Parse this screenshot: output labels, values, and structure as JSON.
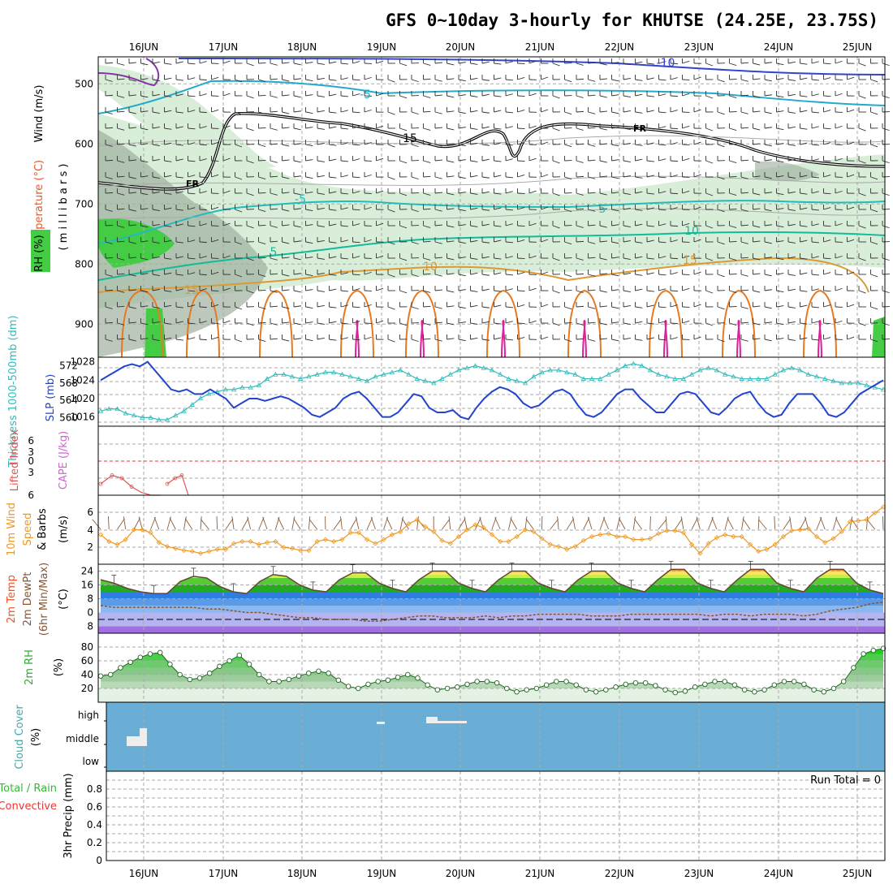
{
  "title": "GFS 0~10day 3-hourly for KHUTSE (24.25E, 23.75S)",
  "day_labels": [
    "16JUN",
    "17JUN",
    "18JUN",
    "19JUN",
    "20JUN",
    "21JUN",
    "22JUN",
    "23JUN",
    "24JUN",
    "25JUN"
  ],
  "colors": {
    "rh_green": "#44cc44",
    "rh_light": "#d9eed9",
    "rh_gray": "#9aaa9a",
    "temp_blue": "#3344cc",
    "temp_cyan": "#22aacc",
    "temp_teal": "#11bb99",
    "temp_orange": "#dd9933",
    "temp_magenta": "#dd2299",
    "slp": "#2244cc",
    "thickness": "#33bbbb",
    "lifted": "#dd5555",
    "wind10": "#ee9922",
    "cloud_bg": "#6aaed6",
    "rain_green": "#33bb33",
    "conv_red": "#ee3333"
  },
  "panels": {
    "upper": {
      "ylabel_wind": "Wind (m/s)",
      "ylabel_temp": "Temperature (°C)",
      "ylabel_rh": "RH (%)",
      "ylabel_mb": "( m i l l i b a r s )",
      "yticks": [
        "500",
        "600",
        "700",
        "800",
        "900"
      ],
      "contour_labels": [
        "-10",
        "-5",
        "-5",
        "5",
        "5",
        "10",
        "10",
        "15",
        "15",
        "15",
        "FR",
        "FR",
        "FR"
      ]
    },
    "slp": {
      "ylabel_thick": "Thickness 1000-500mb (dm)",
      "ylabel_slp": "SLP (mb)",
      "left_ticks": [
        "572",
        "568",
        "564",
        "560"
      ],
      "right_ticks": [
        "1028",
        "1024",
        "1020",
        "1016"
      ]
    },
    "cape": {
      "ylabel_li": "Lifted Index",
      "ylabel_cape": "CAPE (J/kg)",
      "ticks": [
        "6",
        "3",
        "0",
        "3",
        "6"
      ]
    },
    "wind10": {
      "ylabel_a": "10m Wind",
      "ylabel_b": "Speed",
      "ylabel_c": "& Barbs",
      "ylabel_d": "(m/s)",
      "ticks": [
        "6",
        "4",
        "2"
      ]
    },
    "temp2m": {
      "ylabel_a": "2m Temp",
      "ylabel_b": "2m DewPt",
      "ylabel_c": "(6hr Min/Max)",
      "ylabel_d": "(°C)",
      "ticks": [
        "24",
        "16",
        "8",
        "0",
        "8"
      ]
    },
    "rh2m": {
      "ylabel_a": "2m RH",
      "ylabel_b": "(%)",
      "ticks": [
        "80",
        "60",
        "40",
        "20"
      ]
    },
    "cloud": {
      "ylabel_a": "Cloud Cover",
      "ylabel_b": "(%)",
      "ticks": [
        "high",
        "middle",
        "low"
      ]
    },
    "precip": {
      "ylabel_a": "Total / Rain",
      "ylabel_b": "Convective",
      "ylabel_c": "3hr Precip (mm)",
      "ticks": [
        "0.8",
        "0.6",
        "0.4",
        "0.2",
        "0"
      ],
      "run_total": "Run Total = 0"
    }
  },
  "chart_data": [
    {
      "type": "line",
      "title": "SLP (mb)",
      "series": [
        {
          "name": "SLP (mb)",
          "values": [
            1024,
            1025,
            1026,
            1027,
            1027.5,
            1027,
            1028,
            1026,
            1024,
            1022,
            1021.5,
            1022,
            1021,
            1021,
            1022,
            1021,
            1020,
            1018,
            1019,
            1020,
            1020,
            1019.5,
            1020,
            1020.5,
            1020,
            1019,
            1018,
            1016.5,
            1016,
            1017,
            1018,
            1020,
            1021,
            1021.5,
            1020,
            1018,
            1016,
            1016,
            1017,
            1019,
            1021,
            1020.5,
            1018,
            1017,
            1017,
            1017.5,
            1016,
            1015.5,
            1018,
            1020,
            1021.5,
            1022.5,
            1022,
            1021,
            1019,
            1018,
            1018.5,
            1020,
            1021.5,
            1022,
            1021,
            1018.5,
            1016.5,
            1016,
            1017,
            1019,
            1021,
            1022,
            1022,
            1020,
            1018.5,
            1017,
            1017,
            1019,
            1021,
            1021.5,
            1021,
            1019,
            1017,
            1016.5,
            1018,
            1020,
            1021,
            1021.5,
            1019,
            1017,
            1016,
            1016.5,
            1019,
            1021,
            1021,
            1021,
            1019,
            1016.5,
            1016,
            1017,
            1019,
            1021,
            1022,
            1023,
            1024
          ]
        }
      ],
      "ylim": [
        1014,
        1029
      ]
    },
    {
      "type": "line",
      "title": "Thickness 1000-500mb (dm)",
      "series": [
        {
          "name": "Thickness",
          "values": [
            561.5,
            562,
            562,
            561,
            560.5,
            560,
            560,
            559.5,
            559.5,
            560.5,
            561.5,
            563,
            564.5,
            565.5,
            566,
            566.5,
            566.5,
            567,
            567,
            567.5,
            569,
            570,
            570,
            569.5,
            569,
            569.5,
            570,
            570.5,
            570.5,
            570,
            569.5,
            569,
            568.5,
            569.5,
            570,
            570.5,
            571,
            570,
            569,
            568.5,
            568,
            569,
            570,
            571,
            571.5,
            572,
            571.5,
            571,
            570,
            569,
            568.5,
            568,
            569.5,
            570.5,
            571,
            571,
            570.5,
            570,
            569,
            569,
            569,
            570,
            571,
            572,
            572.5,
            572,
            571,
            570,
            569.5,
            569,
            569,
            570,
            571,
            571.5,
            571,
            570,
            569.5,
            569,
            569,
            569,
            569,
            570,
            571,
            571.5,
            571,
            570,
            569.5,
            569,
            568.5,
            568,
            568,
            568,
            567.5,
            567,
            566.5
          ]
        }
      ],
      "ylim": [
        558,
        574
      ]
    },
    {
      "type": "line",
      "title": "Lifted Index",
      "series": [
        {
          "name": "Lifted Index",
          "values": [
            4,
            2.5,
            3,
            4.5,
            5.5,
            6,
            6,
            null,
            4,
            3,
            2.5,
            6
          ]
        }
      ],
      "ylim": [
        -6,
        6
      ]
    },
    {
      "type": "line",
      "title": "10m Wind Speed (m/s)",
      "series": [
        {
          "name": "10m Wind Speed",
          "values": [
            3,
            2.3,
            2,
            2.5,
            3.5,
            3.5,
            3.2,
            2.2,
            1.8,
            1.6,
            1.4,
            1.3,
            1.1,
            1.3,
            1.5,
            1.5,
            2.1,
            2.3,
            2.3,
            2,
            2.2,
            2.3,
            1.7,
            1.6,
            1.4,
            1.4,
            2.3,
            2.5,
            2.3,
            2.5,
            3.2,
            3.2,
            2.5,
            2.1,
            2.5,
            3,
            3.3,
            4.1,
            4.5,
            3.8,
            3.3,
            2.4,
            2.1,
            2.8,
            3.5,
            4,
            3.7,
            3,
            2.3,
            2.3,
            2.8,
            3.5,
            3.3,
            2.6,
            2,
            1.8,
            1.5,
            1.8,
            2.4,
            2.8,
            3,
            3.1,
            2.8,
            2.8,
            2.5,
            2.5,
            2.6,
            3.1,
            3.4,
            3.4,
            3.2,
            2,
            1.1,
            2.1,
            2.7,
            3,
            2.8,
            2.8,
            2,
            1.3,
            1.5,
            2,
            2.8,
            3.4,
            3.5,
            3.6,
            2.8,
            2.2,
            2.6,
            3.3,
            4.3,
            4.4,
            4.5,
            5.2,
            5.8
          ]
        }
      ],
      "ylim": [
        0,
        7
      ]
    },
    {
      "type": "area",
      "title": "2m Temp / DewPt (°C)",
      "series": [
        {
          "name": "2m Temp",
          "values": [
            19,
            17,
            14,
            12,
            11,
            11,
            18,
            21,
            20,
            15,
            12,
            11,
            18,
            22,
            21,
            16,
            13,
            12,
            19,
            23,
            23,
            17,
            14,
            12,
            19,
            24,
            24,
            17,
            14,
            12,
            19,
            24,
            24,
            17,
            14,
            12,
            19,
            24,
            24,
            17,
            14,
            12,
            19,
            25,
            25,
            17,
            14,
            12,
            19,
            25,
            25,
            17,
            14,
            12,
            20,
            25,
            25,
            17,
            13,
            11
          ]
        },
        {
          "name": "2m DewPt",
          "values": [
            4,
            3,
            3,
            3,
            3,
            3,
            3,
            3,
            2,
            2,
            1,
            0,
            0,
            -1,
            -2,
            -3,
            -3,
            -4,
            -4,
            -4,
            -5,
            -5,
            -4,
            -3,
            -2,
            -2,
            -3,
            -3,
            -3,
            -2,
            -3,
            -2,
            -2,
            -1,
            -1,
            -1,
            -1,
            -2,
            -2,
            -2,
            -1,
            -1,
            -1,
            -1,
            -1,
            -1,
            -2,
            -1,
            -1,
            -2,
            -1,
            -1,
            -1,
            -2,
            -1,
            1,
            2,
            3,
            5,
            6
          ]
        }
      ],
      "ylim": [
        -12,
        28
      ]
    },
    {
      "type": "area",
      "title": "2m RH (%)",
      "series": [
        {
          "name": "2m RH",
          "values": [
            38,
            40,
            50,
            58,
            65,
            70,
            72,
            55,
            40,
            33,
            35,
            42,
            52,
            60,
            68,
            55,
            40,
            30,
            30,
            33,
            38,
            42,
            45,
            42,
            32,
            23,
            20,
            26,
            30,
            32,
            36,
            40,
            35,
            25,
            18,
            20,
            22,
            26,
            30,
            30,
            28,
            20,
            15,
            18,
            20,
            25,
            30,
            30,
            25,
            18,
            15,
            18,
            22,
            26,
            28,
            28,
            24,
            18,
            14,
            16,
            22,
            26,
            30,
            30,
            25,
            18,
            15,
            18,
            25,
            30,
            30,
            26,
            18,
            15,
            20,
            30,
            50,
            70,
            75,
            78
          ]
        }
      ],
      "ylim": [
        0,
        100
      ]
    },
    {
      "type": "bar",
      "title": "Cloud Cover (%)",
      "categories": [
        "low",
        "middle",
        "high"
      ],
      "values": [
        0,
        20,
        5
      ]
    },
    {
      "type": "bar",
      "title": "3hr Precip (mm)",
      "categories": [
        "Total",
        "Rain",
        "Convective"
      ],
      "values": [
        0,
        0,
        0
      ],
      "ylim": [
        0,
        1
      ]
    }
  ]
}
